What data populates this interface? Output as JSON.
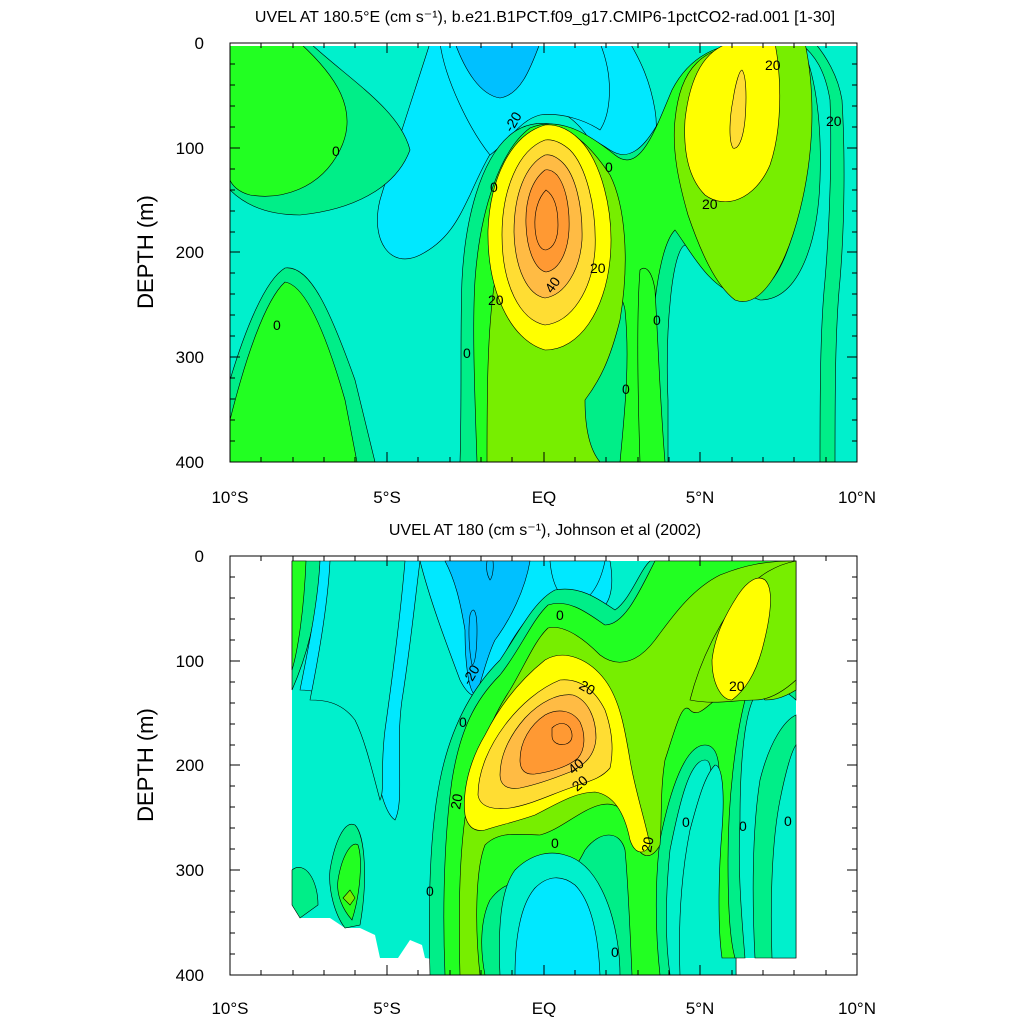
{
  "chart_data": [
    {
      "type": "contour",
      "title": "UVEL AT 180.5°E (cm s⁻¹), b.e21.B1PCT.f09_g17.CMIP6-1pctCO2-rad.001 [1-30]",
      "ylabel": "DEPTH (m)",
      "xlim": [
        -10,
        10
      ],
      "ylim": [
        400,
        0
      ],
      "x_ticks": [
        "10°S",
        "5°S",
        "EQ",
        "5°N",
        "10°N"
      ],
      "y_ticks": [
        "0",
        "100",
        "200",
        "300",
        "400"
      ],
      "contour_levels": [
        -30,
        -20,
        -10,
        0,
        10,
        20,
        30,
        40,
        50,
        60,
        70
      ],
      "contour_labels": [
        "-20",
        "0",
        "0",
        "0",
        "0",
        "0",
        "0",
        "0",
        "20",
        "20",
        "40",
        "20",
        "20",
        "20"
      ],
      "features": [
        {
          "name": "equatorial undercurrent core",
          "lat": 0.0,
          "depth": 170,
          "max_value": 70
        },
        {
          "name": "north subsurface jet",
          "lat": 6.0,
          "depth": 75,
          "max_value": 30
        },
        {
          "name": "surface westward flow",
          "lat": -1.3,
          "depth": 20,
          "min_value": -30
        }
      ]
    },
    {
      "type": "contour",
      "title": "UVEL AT 180 (cm s⁻¹), Johnson et al (2002)",
      "ylabel": "DEPTH (m)",
      "xlim": [
        -10,
        10
      ],
      "ylim": [
        400,
        0
      ],
      "x_ticks": [
        "10°S",
        "5°S",
        "EQ",
        "5°N",
        "10°N"
      ],
      "y_ticks": [
        "0",
        "100",
        "200",
        "300",
        "400"
      ],
      "contour_levels": [
        -30,
        -20,
        -10,
        0,
        10,
        20,
        30,
        40,
        50,
        60
      ],
      "contour_labels": [
        "0",
        "-20",
        "0",
        "20",
        "40",
        "20",
        "20",
        "0",
        "0",
        "0",
        "0",
        "20",
        "20",
        "0",
        "0"
      ],
      "features": [
        {
          "name": "equatorial undercurrent core",
          "lat": 0.5,
          "depth": 170,
          "max_value": 60
        },
        {
          "name": "north subsurface jet",
          "lat": 6.8,
          "depth": 90,
          "max_value": 30
        }
      ]
    }
  ],
  "colors": {
    "c_m30": "#00c0ff",
    "c_m20": "#00e8ff",
    "c_m10": "#00f0cc",
    "c_0": "#00ee88",
    "c_10": "#22ff22",
    "c_20": "#77ee00",
    "c_30": "#ffff00",
    "c_40": "#ffdd33",
    "c_50": "#ffbb44",
    "c_60": "#ff9933"
  }
}
